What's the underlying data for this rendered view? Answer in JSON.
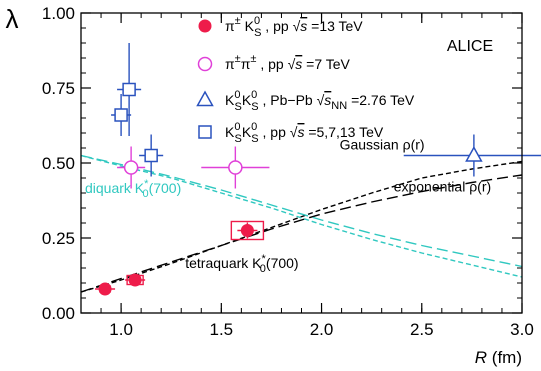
{
  "chart_data": {
    "type": "scatter",
    "xlabel": "R (fm)",
    "xlabel_var": "R",
    "xlabel_unit": "(fm)",
    "ylabel": "λ",
    "xlim": [
      0.8,
      3.0
    ],
    "ylim": [
      0.0,
      1.0
    ],
    "x_ticks": [
      1.0,
      1.5,
      2.0,
      2.5,
      3.0
    ],
    "x_tick_labels": [
      "1.0",
      "1.5",
      "2.0",
      "2.5",
      "3.0"
    ],
    "y_ticks": [
      0.0,
      0.25,
      0.5,
      0.75,
      1.0
    ],
    "y_tick_labels": [
      "0.00",
      "0.25",
      "0.50",
      "0.75",
      "1.00"
    ],
    "grid": false,
    "experiment_label": "ALICE",
    "legend": {
      "placement": "top-center",
      "entries": [
        {
          "marker": "filled-circle",
          "color": "#ee1c4a",
          "label": "π± K0S , pp √s =13 TeV"
        },
        {
          "marker": "open-circle",
          "color": "#e040d8",
          "label": "π±π± , pp √s =7 TeV"
        },
        {
          "marker": "open-triangle",
          "color": "#2a52be",
          "label": "K0S K0S , Pb−Pb √sNN =2.76 TeV"
        },
        {
          "marker": "open-square",
          "color": "#2a52be",
          "label": "K0S K0S , pp √s =5,7,13 TeV"
        }
      ]
    },
    "series": [
      {
        "name": "π± K0S , pp √s =13 TeV",
        "marker": "filled-circle",
        "color": "#ee1c4a",
        "points": [
          {
            "x": 0.92,
            "y": 0.08,
            "stat_y": 0.005,
            "stat_x": 0.01,
            "sys_x": 0.025,
            "sys_y": 0.01
          },
          {
            "x": 1.07,
            "y": 0.11,
            "stat_y": 0.005,
            "stat_x": 0.01,
            "sys_x": 0.04,
            "sys_y": 0.015
          },
          {
            "x": 1.63,
            "y": 0.275,
            "stat_y": 0.02,
            "stat_x": 0.01,
            "sys_x": 0.08,
            "sys_y": 0.03
          }
        ]
      },
      {
        "name": "π±π± , pp √s =7 TeV",
        "marker": "open-circle",
        "color": "#e040d8",
        "points": [
          {
            "x": 1.05,
            "y": 0.485,
            "err_x": 0.07,
            "err_y": 0.07
          },
          {
            "x": 1.57,
            "y": 0.485,
            "err_x": 0.17,
            "err_y": 0.07
          }
        ]
      },
      {
        "name": "K0S K0S , Pb−Pb √sNN =2.76 TeV",
        "marker": "open-triangle",
        "color": "#2a52be",
        "points": [
          {
            "x": 2.76,
            "y": 0.525,
            "err_x": 0.35,
            "err_y": 0.07
          }
        ]
      },
      {
        "name": "K0S K0S , pp √s =5,7,13 TeV",
        "marker": "open-square",
        "color": "#2a52be",
        "points": [
          {
            "x": 1.0,
            "y": 0.66,
            "err_x": 0.05,
            "err_y": 0.07
          },
          {
            "x": 1.04,
            "y": 0.745,
            "err_x": 0.06,
            "err_y": 0.155
          },
          {
            "x": 1.15,
            "y": 0.525,
            "err_x": 0.06,
            "err_y": 0.07
          }
        ]
      }
    ],
    "curves": [
      {
        "name": "Gaussian ρ(r)",
        "color": "#000000",
        "dash": "short",
        "x": [
          0.8,
          1.0,
          1.25,
          1.5,
          1.75,
          2.0,
          2.25,
          2.5,
          2.75,
          3.0
        ],
        "y": [
          0.07,
          0.11,
          0.165,
          0.225,
          0.285,
          0.345,
          0.4,
          0.45,
          0.48,
          0.505
        ]
      },
      {
        "name": "exponential ρ(r)",
        "color": "#000000",
        "dash": "long",
        "x": [
          0.8,
          1.0,
          1.25,
          1.5,
          1.75,
          2.0,
          2.25,
          2.5,
          2.75,
          3.0
        ],
        "y": [
          0.07,
          0.115,
          0.17,
          0.225,
          0.28,
          0.33,
          0.37,
          0.405,
          0.435,
          0.46
        ]
      },
      {
        "name": "diquark K0*(700) a",
        "color": "#30c8c0",
        "dash": "short",
        "x": [
          0.8,
          1.0,
          1.25,
          1.5,
          1.75,
          2.0,
          2.25,
          2.5,
          2.75,
          3.0
        ],
        "y": [
          0.525,
          0.49,
          0.45,
          0.4,
          0.35,
          0.295,
          0.245,
          0.2,
          0.16,
          0.12
        ]
      },
      {
        "name": "diquark K0*(700) b",
        "color": "#30c8c0",
        "dash": "long",
        "x": [
          0.8,
          1.0,
          1.25,
          1.5,
          1.75,
          2.0,
          2.25,
          2.5,
          2.75,
          3.0
        ],
        "y": [
          0.525,
          0.495,
          0.455,
          0.41,
          0.36,
          0.31,
          0.265,
          0.225,
          0.19,
          0.155
        ]
      }
    ],
    "annotations": [
      {
        "text": "Gaussian ρ(r)",
        "x": 2.09,
        "y": 0.545
      },
      {
        "text": "exponential ρ(r)",
        "x": 2.36,
        "y": 0.405
      },
      {
        "text": "diquark K0*(700)",
        "x": 0.82,
        "y": 0.4,
        "color": "#30c8c0"
      },
      {
        "text": "tetraquark K0*(700)",
        "x": 1.32,
        "y": 0.15
      }
    ]
  }
}
